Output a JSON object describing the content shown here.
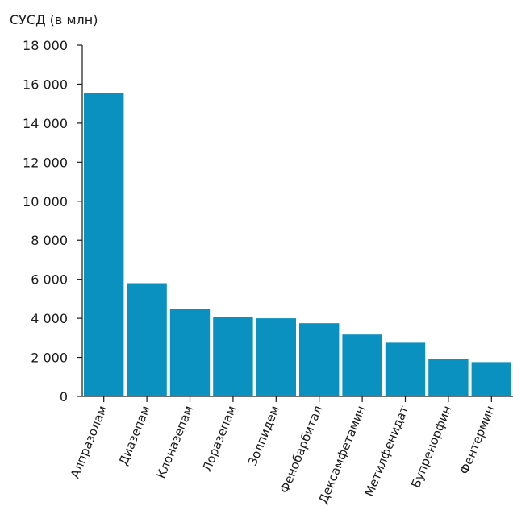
{
  "chart_data": {
    "type": "bar",
    "ylabel": "СУСД (в млн)",
    "categories": [
      "Алпразолам",
      "Диазепам",
      "Клоназепам",
      "Лоразепам",
      "Золпидем",
      "Фенобарбитал",
      "Дексамфетамин",
      "Метилфенидат",
      "Бупренорфин",
      "Фентермин"
    ],
    "values": [
      15550,
      5800,
      4500,
      4080,
      4000,
      3750,
      3170,
      2750,
      1930,
      1760
    ],
    "ylim": [
      0,
      18000
    ],
    "yticks": [
      0,
      2000,
      4000,
      6000,
      8000,
      10000,
      12000,
      14000,
      16000,
      18000
    ],
    "ytick_labels": [
      "0",
      "2 000",
      "4 000",
      "6 000",
      "8 000",
      "10 000",
      "12 000",
      "14 000",
      "16 000",
      "18 000"
    ],
    "bar_color": "#0a91c0",
    "grid": false,
    "legend": "none"
  }
}
